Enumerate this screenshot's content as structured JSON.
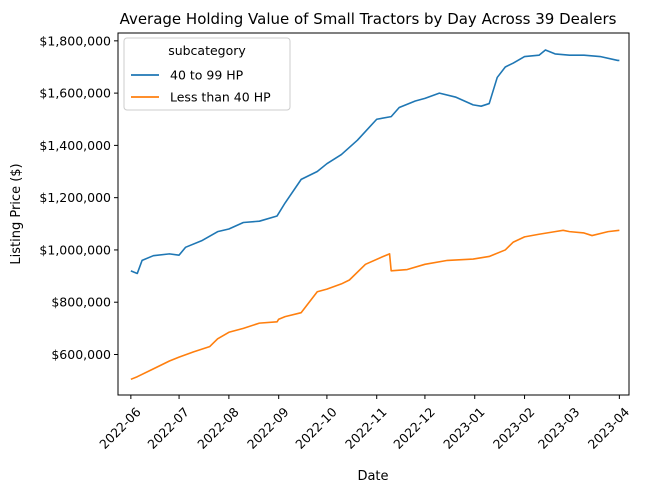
{
  "chart_data": {
    "type": "line",
    "title": "Average Holding Value of Small Tractors by Day Across 39 Dealers",
    "xlabel": "Date",
    "ylabel": "Listing Price ($)",
    "xlim": [
      "2022-05-24",
      "2023-04-07"
    ],
    "ylim": [
      445000,
      1830000
    ],
    "x_ticks": [
      "2022-06",
      "2022-07",
      "2022-08",
      "2022-09",
      "2022-10",
      "2022-11",
      "2022-12",
      "2023-01",
      "2023-02",
      "2023-03",
      "2023-04"
    ],
    "y_ticks": [
      600000,
      800000,
      1000000,
      1200000,
      1400000,
      1600000,
      1800000
    ],
    "y_tick_labels": [
      "$600,000",
      "$800,000",
      "$1,000,000",
      "$1,200,000",
      "$1,400,000",
      "$1,600,000",
      "$1,800,000"
    ],
    "grid": false,
    "legend": {
      "title": "subcategory",
      "position": "top-left"
    },
    "series": [
      {
        "name": "40 to 99 HP",
        "color": "#1f77b4",
        "x": [
          "2022-06-01",
          "2022-06-05",
          "2022-06-08",
          "2022-06-15",
          "2022-06-25",
          "2022-07-01",
          "2022-07-05",
          "2022-07-15",
          "2022-07-25",
          "2022-08-01",
          "2022-08-10",
          "2022-08-20",
          "2022-08-31",
          "2022-09-05",
          "2022-09-15",
          "2022-09-25",
          "2022-10-01",
          "2022-10-10",
          "2022-10-20",
          "2022-11-01",
          "2022-11-10",
          "2022-11-15",
          "2022-11-25",
          "2022-12-01",
          "2022-12-10",
          "2022-12-20",
          "2022-12-31",
          "2023-01-05",
          "2023-01-10",
          "2023-01-15",
          "2023-01-20",
          "2023-01-25",
          "2023-02-01",
          "2023-02-10",
          "2023-02-14",
          "2023-02-20",
          "2023-03-01",
          "2023-03-10",
          "2023-03-20",
          "2023-03-31",
          "2023-04-01"
        ],
        "y": [
          920000,
          910000,
          960000,
          978000,
          985000,
          980000,
          1010000,
          1035000,
          1070000,
          1080000,
          1105000,
          1110000,
          1130000,
          1180000,
          1270000,
          1300000,
          1330000,
          1365000,
          1420000,
          1500000,
          1510000,
          1545000,
          1570000,
          1580000,
          1600000,
          1585000,
          1555000,
          1550000,
          1560000,
          1660000,
          1700000,
          1715000,
          1740000,
          1745000,
          1765000,
          1750000,
          1745000,
          1745000,
          1740000,
          1725000,
          1725000
        ]
      },
      {
        "name": "Less than 40 HP",
        "color": "#ff7f0e",
        "x": [
          "2022-06-01",
          "2022-06-05",
          "2022-06-15",
          "2022-06-25",
          "2022-07-01",
          "2022-07-10",
          "2022-07-20",
          "2022-07-25",
          "2022-08-01",
          "2022-08-10",
          "2022-08-20",
          "2022-08-31",
          "2022-09-01",
          "2022-09-05",
          "2022-09-15",
          "2022-09-25",
          "2022-10-01",
          "2022-10-10",
          "2022-10-15",
          "2022-10-25",
          "2022-11-05",
          "2022-11-09",
          "2022-11-10",
          "2022-11-20",
          "2022-12-01",
          "2022-12-15",
          "2022-12-31",
          "2023-01-10",
          "2023-01-20",
          "2023-01-25",
          "2023-02-01",
          "2023-02-10",
          "2023-02-20",
          "2023-02-25",
          "2023-03-01",
          "2023-03-10",
          "2023-03-15",
          "2023-03-25",
          "2023-04-01"
        ],
        "y": [
          505000,
          515000,
          545000,
          575000,
          590000,
          610000,
          630000,
          660000,
          685000,
          700000,
          720000,
          725000,
          735000,
          745000,
          760000,
          840000,
          850000,
          870000,
          885000,
          945000,
          975000,
          985000,
          920000,
          925000,
          945000,
          960000,
          965000,
          975000,
          1000000,
          1030000,
          1050000,
          1060000,
          1070000,
          1075000,
          1070000,
          1065000,
          1055000,
          1070000,
          1075000
        ]
      }
    ]
  }
}
